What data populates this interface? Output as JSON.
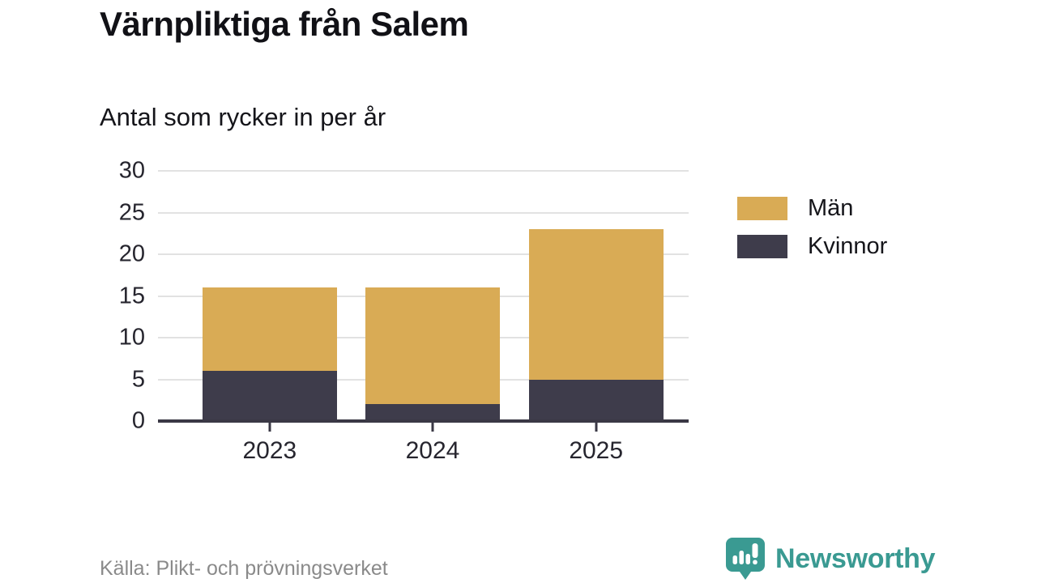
{
  "header": {
    "title": "Värnpliktiga från Salem",
    "subtitle": "Antal som rycker in per år"
  },
  "chart_data": {
    "type": "bar",
    "stacked": true,
    "categories": [
      "2023",
      "2024",
      "2025"
    ],
    "series": [
      {
        "name": "Män",
        "color": "#d9ab55",
        "values": [
          10,
          14,
          18
        ]
      },
      {
        "name": "Kvinnor",
        "color": "#3e3c4b",
        "values": [
          6,
          2,
          5
        ]
      }
    ],
    "stack_order_bottom_to_top": [
      "Kvinnor",
      "Män"
    ],
    "totals": [
      16,
      16,
      23
    ],
    "title": "Värnpliktiga från Salem",
    "subtitle": "Antal som rycker in per år",
    "xlabel": "",
    "ylabel": "",
    "y_ticks": [
      0,
      5,
      10,
      15,
      20,
      25,
      30
    ],
    "ylim": [
      0,
      30
    ],
    "grid": true,
    "legend_position": "right"
  },
  "legend": {
    "items": [
      {
        "label": "Män",
        "color": "#d9ab55"
      },
      {
        "label": "Kvinnor",
        "color": "#3e3c4b"
      }
    ]
  },
  "footer": {
    "source": "Källa: Plikt- och prövningsverket",
    "brand_name": "Newsworthy"
  },
  "colors": {
    "men": "#d9ab55",
    "women": "#3e3c4b",
    "grid": "#e2e2e2",
    "axis": "#3a3845",
    "brand_teal": "#3a9a92",
    "source_text": "#8a8a8a",
    "background": "#ffffff"
  },
  "icons": {
    "brand_logo": "newsworthy-chart-speech-bubble-icon"
  }
}
